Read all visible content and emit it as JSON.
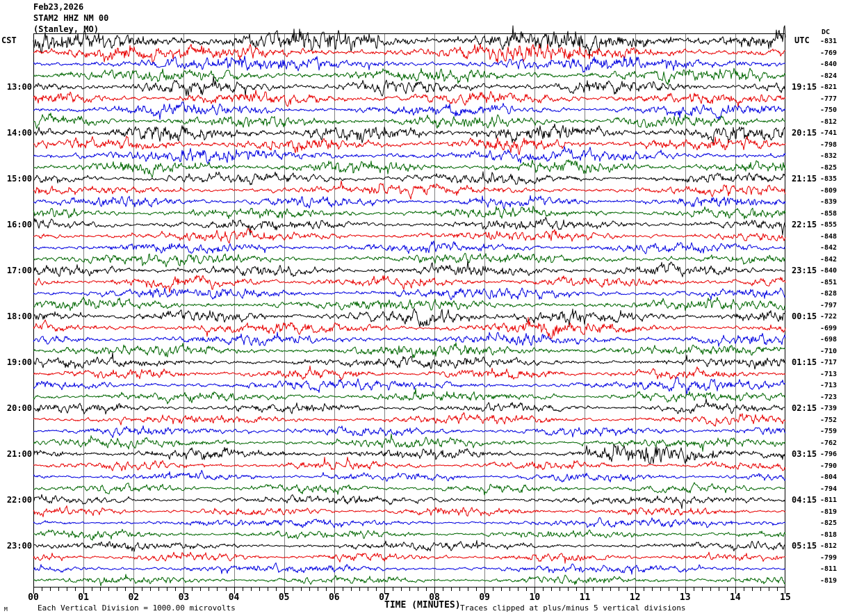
{
  "header": {
    "date": "Feb23,2026",
    "station": "STAM2 HHZ NM 00",
    "location": "(Stanley, MO)"
  },
  "axes": {
    "left_header": "CST",
    "right_header": "UTC",
    "dc_header": "DC"
  },
  "footer": {
    "watermark": "M"
  },
  "chart_data": {
    "type": "line",
    "subtype": "helicorder-seismogram",
    "station": "STAM2 HHZ NM 00",
    "location": "Stanley, MO",
    "date": "Feb23,2026",
    "left_timezone": "CST",
    "right_timezone": "UTC",
    "row_duration_minutes": 15,
    "x_axis": {
      "label": "TIME (MINUTES)",
      "min": 0,
      "max": 15,
      "tick_labels": [
        "00",
        "01",
        "02",
        "03",
        "04",
        "05",
        "06",
        "07",
        "08",
        "09",
        "10",
        "11",
        "12",
        "13",
        "14",
        "15"
      ],
      "minor_ticks_per_major": 5
    },
    "y_units_note": "Each Vertical Division = 1000.00 microvolts",
    "clip_note": "Traces clipped at plus/minus 5 vertical divisions",
    "trace_color_cycle": [
      "#000000",
      "#e80000",
      "#0000e0",
      "#006600"
    ],
    "grid_color": "#808080",
    "rows": [
      {
        "cst": "",
        "utc": "",
        "dc": -831,
        "amp": 11,
        "hf": 1.4,
        "clip": 22
      },
      {
        "cst": "",
        "utc": "",
        "dc": -769,
        "amp": 8.5,
        "hf": 1.1
      },
      {
        "cst": "",
        "utc": "",
        "dc": -840,
        "amp": 8
      },
      {
        "cst": "",
        "utc": "",
        "dc": -824,
        "amp": 8
      },
      {
        "cst": "13:00",
        "utc": "19:15",
        "dc": -821,
        "amp": 8
      },
      {
        "cst": "",
        "utc": "",
        "dc": -777,
        "amp": 7.5
      },
      {
        "cst": "",
        "utc": "",
        "dc": -750,
        "amp": 7
      },
      {
        "cst": "",
        "utc": "",
        "dc": -812,
        "amp": 7.5
      },
      {
        "cst": "14:00",
        "utc": "20:15",
        "dc": -741,
        "amp": 9,
        "hf": 1.1
      },
      {
        "cst": "",
        "utc": "",
        "dc": -798,
        "amp": 8
      },
      {
        "cst": "",
        "utc": "",
        "dc": -832,
        "amp": 7.5
      },
      {
        "cst": "",
        "utc": "",
        "dc": -825,
        "amp": 7.5
      },
      {
        "cst": "15:00",
        "utc": "21:15",
        "dc": -835,
        "amp": 6.5
      },
      {
        "cst": "",
        "utc": "",
        "dc": -809,
        "amp": 6
      },
      {
        "cst": "",
        "utc": "",
        "dc": -839,
        "amp": 6.5
      },
      {
        "cst": "",
        "utc": "",
        "dc": -858,
        "amp": 6.5
      },
      {
        "cst": "16:00",
        "utc": "22:15",
        "dc": -855,
        "amp": 6.5
      },
      {
        "cst": "",
        "utc": "",
        "dc": -848,
        "amp": 6
      },
      {
        "cst": "",
        "utc": "",
        "dc": -842,
        "amp": 6
      },
      {
        "cst": "",
        "utc": "",
        "dc": -842,
        "amp": 6.5
      },
      {
        "cst": "17:00",
        "utc": "23:15",
        "dc": -840,
        "amp": 7
      },
      {
        "cst": "",
        "utc": "",
        "dc": -851,
        "amp": 6.5
      },
      {
        "cst": "",
        "utc": "",
        "dc": -828,
        "amp": 6.5
      },
      {
        "cst": "",
        "utc": "",
        "dc": -797,
        "amp": 6.5
      },
      {
        "cst": "18:00",
        "utc": "00:15",
        "dc": -722,
        "amp": 7,
        "bursts": [
          [
            7.5,
            11,
            1.6
          ]
        ]
      },
      {
        "cst": "",
        "utc": "",
        "dc": -699,
        "amp": 6.5,
        "bursts": [
          [
            8,
            10.5,
            1.4
          ]
        ]
      },
      {
        "cst": "",
        "utc": "",
        "dc": -698,
        "amp": 6.5
      },
      {
        "cst": "",
        "utc": "",
        "dc": -710,
        "amp": 6.5,
        "bursts": [
          [
            8,
            11,
            1.3
          ]
        ]
      },
      {
        "cst": "19:00",
        "utc": "01:15",
        "dc": -717,
        "amp": 6.5
      },
      {
        "cst": "",
        "utc": "",
        "dc": -713,
        "amp": 6
      },
      {
        "cst": "",
        "utc": "",
        "dc": -713,
        "amp": 6
      },
      {
        "cst": "",
        "utc": "",
        "dc": -723,
        "amp": 6
      },
      {
        "cst": "20:00",
        "utc": "02:15",
        "dc": -739,
        "amp": 5.5
      },
      {
        "cst": "",
        "utc": "",
        "dc": -752,
        "amp": 5.5
      },
      {
        "cst": "",
        "utc": "",
        "dc": -759,
        "amp": 5.5
      },
      {
        "cst": "",
        "utc": "",
        "dc": -762,
        "amp": 5.5
      },
      {
        "cst": "21:00",
        "utc": "03:15",
        "dc": -796,
        "amp": 5.5,
        "hf": 1.2,
        "bursts": [
          [
            11,
            15,
            2.2
          ]
        ]
      },
      {
        "cst": "",
        "utc": "",
        "dc": -790,
        "amp": 5
      },
      {
        "cst": "",
        "utc": "",
        "dc": -804,
        "amp": 5
      },
      {
        "cst": "",
        "utc": "",
        "dc": -794,
        "amp": 5
      },
      {
        "cst": "22:00",
        "utc": "04:15",
        "dc": -811,
        "amp": 5
      },
      {
        "cst": "",
        "utc": "",
        "dc": -819,
        "amp": 4.8
      },
      {
        "cst": "",
        "utc": "",
        "dc": -825,
        "amp": 4.8
      },
      {
        "cst": "",
        "utc": "",
        "dc": -818,
        "amp": 4.8
      },
      {
        "cst": "23:00",
        "utc": "05:15",
        "dc": -812,
        "amp": 5
      },
      {
        "cst": "",
        "utc": "",
        "dc": -799,
        "amp": 4.8
      },
      {
        "cst": "",
        "utc": "",
        "dc": -811,
        "amp": 4.6
      },
      {
        "cst": "",
        "utc": "",
        "dc": -819,
        "amp": 4.6
      }
    ]
  }
}
